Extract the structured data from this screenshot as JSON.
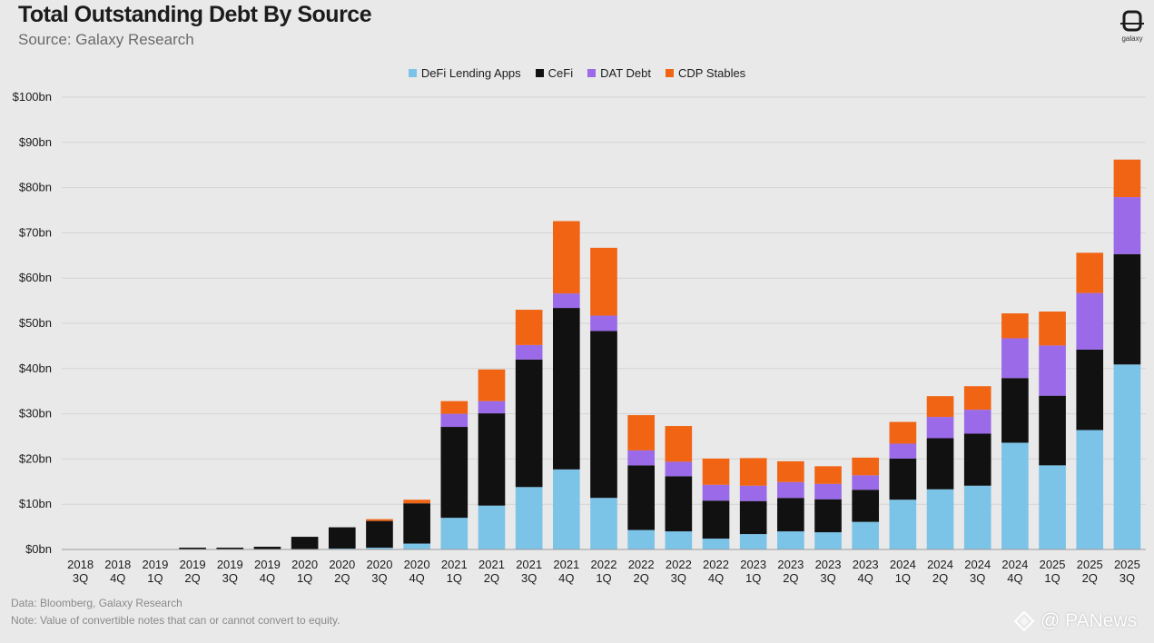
{
  "header": {
    "title": "Total Outstanding Debt By Source",
    "subtitle": "Source: Galaxy Research"
  },
  "logo": {
    "icon": "galaxy-logo-icon",
    "text": "galaxy"
  },
  "footnotes": {
    "line1": "Data: Bloomberg, Galaxy Research",
    "line2": "Note: Value of convertible notes that can or cannot convert to equity."
  },
  "watermark": {
    "icon": "panews-logo-icon",
    "text": "@ PANews"
  },
  "colors": {
    "defi": "#7cc3e8",
    "cefi": "#111111",
    "dat": "#9a6ae8",
    "cdp": "#f06414",
    "grid": "#d4d4d4",
    "background": "#e9e9e9"
  },
  "chart_data": {
    "type": "bar",
    "stacked": true,
    "title": "Total Outstanding Debt By Source",
    "subtitle": "Source: Galaxy Research",
    "grid": true,
    "legend_position": "top-center",
    "ylim": [
      0,
      100
    ],
    "y_ticks": [
      "$0bn",
      "$10bn",
      "$20bn",
      "$30bn",
      "$40bn",
      "$50bn",
      "$60bn",
      "$70bn",
      "$80bn",
      "$90bn",
      "$100bn"
    ],
    "categories": [
      [
        "2018",
        "3Q"
      ],
      [
        "2018",
        "4Q"
      ],
      [
        "2019",
        "1Q"
      ],
      [
        "2019",
        "2Q"
      ],
      [
        "2019",
        "3Q"
      ],
      [
        "2019",
        "4Q"
      ],
      [
        "2020",
        "1Q"
      ],
      [
        "2020",
        "2Q"
      ],
      [
        "2020",
        "3Q"
      ],
      [
        "2020",
        "4Q"
      ],
      [
        "2021",
        "1Q"
      ],
      [
        "2021",
        "2Q"
      ],
      [
        "2021",
        "3Q"
      ],
      [
        "2021",
        "4Q"
      ],
      [
        "2022",
        "1Q"
      ],
      [
        "2022",
        "2Q"
      ],
      [
        "2022",
        "3Q"
      ],
      [
        "2022",
        "4Q"
      ],
      [
        "2023",
        "1Q"
      ],
      [
        "2023",
        "2Q"
      ],
      [
        "2023",
        "3Q"
      ],
      [
        "2023",
        "4Q"
      ],
      [
        "2024",
        "1Q"
      ],
      [
        "2024",
        "2Q"
      ],
      [
        "2024",
        "3Q"
      ],
      [
        "2024",
        "4Q"
      ],
      [
        "2025",
        "1Q"
      ],
      [
        "2025",
        "2Q"
      ],
      [
        "2025",
        "3Q"
      ]
    ],
    "series": [
      {
        "name": "DeFi Lending Apps",
        "color": "#7cc3e8",
        "values": [
          0,
          0,
          0,
          0,
          0,
          0,
          0,
          0.2,
          0.4,
          1.3,
          7.0,
          9.7,
          13.8,
          17.7,
          11.4,
          4.3,
          4.0,
          2.4,
          3.4,
          4.0,
          3.8,
          6.1,
          11.0,
          13.3,
          14.1,
          23.6,
          18.6,
          26.4,
          40.9
        ]
      },
      {
        "name": "CeFi",
        "color": "#111111",
        "values": [
          0,
          0,
          0.1,
          0.4,
          0.4,
          0.6,
          2.8,
          4.7,
          5.9,
          8.9,
          20.1,
          20.4,
          28.2,
          35.7,
          36.9,
          14.3,
          12.2,
          8.4,
          7.3,
          7.4,
          7.3,
          7.1,
          9.1,
          11.3,
          11.5,
          14.3,
          15.4,
          17.8,
          24.4
        ]
      },
      {
        "name": "DAT Debt",
        "color": "#9a6ae8",
        "values": [
          0,
          0,
          0,
          0,
          0,
          0,
          0,
          0,
          0,
          0,
          2.9,
          2.7,
          3.2,
          3.2,
          3.4,
          3.3,
          3.2,
          3.5,
          3.4,
          3.5,
          3.4,
          3.2,
          3.3,
          4.7,
          5.3,
          8.8,
          11.1,
          12.5,
          12.6
        ]
      },
      {
        "name": "CDP Stables",
        "color": "#f06414",
        "values": [
          0,
          0,
          0,
          0,
          0,
          0,
          0,
          0,
          0.4,
          0.8,
          2.8,
          7.0,
          7.8,
          16.0,
          15.0,
          7.8,
          7.9,
          5.8,
          6.1,
          4.6,
          3.9,
          3.9,
          4.8,
          4.6,
          5.2,
          5.5,
          7.5,
          8.9,
          8.3
        ]
      }
    ]
  }
}
